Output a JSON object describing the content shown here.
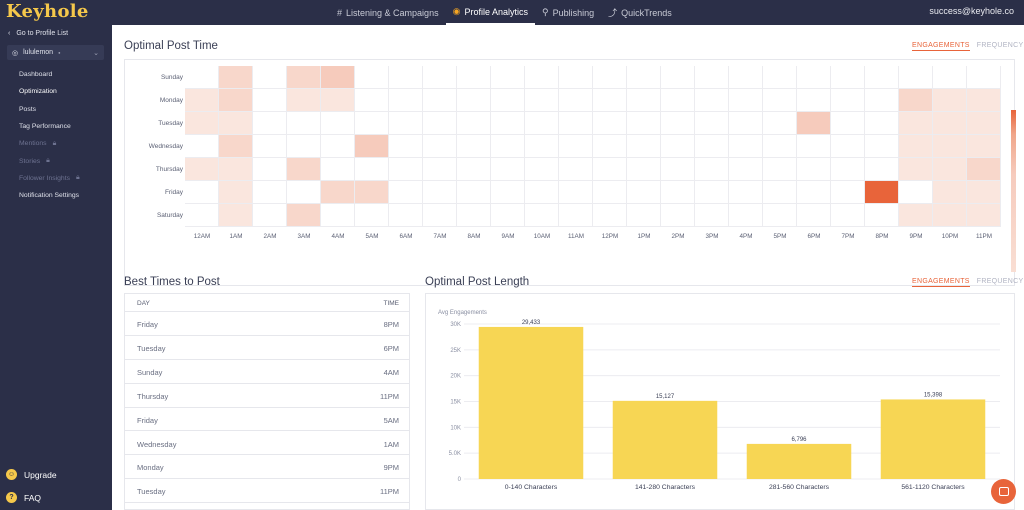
{
  "app": {
    "logo": "Keyhole",
    "user_email": "success@keyhole.co",
    "nav": [
      {
        "icon": "#",
        "label": "Listening & Campaigns"
      },
      {
        "icon": "◉",
        "label": "Profile Analytics"
      },
      {
        "icon": "⚲",
        "label": "Publishing"
      },
      {
        "icon": "⤴",
        "label": "QuickTrends"
      }
    ]
  },
  "sidebar": {
    "back_link": "Go to Profile List",
    "back_icon": "‹",
    "profile": {
      "icon": "◎",
      "name": "lululemon",
      "status_dot": "●",
      "caret": "⌄"
    },
    "items": [
      {
        "label": "Dashboard",
        "locked": false
      },
      {
        "label": "Optimization",
        "locked": false
      },
      {
        "label": "Posts",
        "locked": false
      },
      {
        "label": "Tag Performance",
        "locked": false
      },
      {
        "label": "Mentions",
        "locked": true
      },
      {
        "label": "Stories",
        "locked": true
      },
      {
        "label": "Follower Insights",
        "locked": true
      },
      {
        "label": "Notification Settings",
        "locked": false
      }
    ],
    "bottom": [
      {
        "icon": "☺",
        "label": "Upgrade"
      },
      {
        "icon": "?",
        "label": "FAQ"
      }
    ],
    "toggle_icon": "‹"
  },
  "optimal_post_time": {
    "title": "Optimal Post Time",
    "toggle": {
      "on": "ENGAGEMENTS",
      "off": "FREQUENCY"
    },
    "days": [
      "Sunday",
      "Monday",
      "Tuesday",
      "Wednesday",
      "Thursday",
      "Friday",
      "Saturday"
    ],
    "hours": [
      "12AM",
      "1AM",
      "2AM",
      "3AM",
      "4AM",
      "5AM",
      "6AM",
      "7AM",
      "8AM",
      "9AM",
      "10AM",
      "11AM",
      "12PM",
      "1PM",
      "2PM",
      "3PM",
      "4PM",
      "5PM",
      "6PM",
      "7PM",
      "8PM",
      "9PM",
      "10PM",
      "11PM"
    ],
    "intensity": [
      [
        0,
        2,
        0,
        2,
        3,
        0,
        0,
        0,
        0,
        0,
        0,
        0,
        0,
        0,
        0,
        0,
        0,
        0,
        0,
        0,
        0,
        0,
        0,
        0
      ],
      [
        1,
        2,
        0,
        1,
        1,
        0,
        0,
        0,
        0,
        0,
        0,
        0,
        0,
        0,
        0,
        0,
        0,
        0,
        0,
        0,
        0,
        2,
        1,
        1
      ],
      [
        1,
        1,
        0,
        0,
        0,
        0,
        0,
        0,
        0,
        0,
        0,
        0,
        0,
        0,
        0,
        0,
        0,
        0,
        3,
        0,
        0,
        1,
        1,
        1
      ],
      [
        0,
        2,
        0,
        0,
        0,
        3,
        0,
        0,
        0,
        0,
        0,
        0,
        0,
        0,
        0,
        0,
        0,
        0,
        0,
        0,
        0,
        1,
        1,
        1
      ],
      [
        1,
        1,
        0,
        2,
        0,
        0,
        0,
        0,
        0,
        0,
        0,
        0,
        0,
        0,
        0,
        0,
        0,
        0,
        0,
        0,
        0,
        1,
        1,
        2
      ],
      [
        0,
        1,
        0,
        0,
        2,
        2,
        0,
        0,
        0,
        0,
        0,
        0,
        0,
        0,
        0,
        0,
        0,
        0,
        0,
        0,
        9,
        0,
        1,
        1
      ],
      [
        0,
        1,
        0,
        2,
        0,
        0,
        0,
        0,
        0,
        0,
        0,
        0,
        0,
        0,
        0,
        0,
        0,
        0,
        0,
        0,
        0,
        1,
        1,
        1
      ]
    ],
    "colors": {
      "0": "#ffffff",
      "1": "#fae6de",
      "2": "#f8d7cb",
      "3": "#f6cbbc",
      "9": "#e8643a"
    }
  },
  "best_times": {
    "title": "Best Times to Post",
    "headers": {
      "day": "DAY",
      "time": "TIME"
    },
    "rows": [
      {
        "day": "Friday",
        "time": "8PM"
      },
      {
        "day": "Tuesday",
        "time": "6PM"
      },
      {
        "day": "Sunday",
        "time": "4AM"
      },
      {
        "day": "Thursday",
        "time": "11PM"
      },
      {
        "day": "Friday",
        "time": "5AM"
      },
      {
        "day": "Wednesday",
        "time": "1AM"
      },
      {
        "day": "Monday",
        "time": "9PM"
      },
      {
        "day": "Tuesday",
        "time": "11PM"
      }
    ]
  },
  "optimal_post_length": {
    "title": "Optimal Post Length",
    "toggle": {
      "on": "ENGAGEMENTS",
      "off": "FREQUENCY"
    }
  },
  "chart_data": {
    "type": "bar",
    "title": "",
    "ylabel": "Avg Engagements",
    "xlabel": "",
    "categories": [
      "0-140 Characters",
      "141-280 Characters",
      "281-560 Characters",
      "561-1120 Characters"
    ],
    "values": [
      29433,
      15127,
      6796,
      15398
    ],
    "value_labels": [
      "29,433",
      "15,127",
      "6,796",
      "15,398"
    ],
    "ylim": [
      0,
      30000
    ],
    "yticks": [
      0,
      5000,
      10000,
      15000,
      20000,
      25000,
      30000
    ],
    "ytick_labels": [
      "0",
      "5.0K",
      "10K",
      "15K",
      "20K",
      "25K",
      "30K"
    ],
    "grid": true,
    "bar_color": "#f7d654"
  }
}
